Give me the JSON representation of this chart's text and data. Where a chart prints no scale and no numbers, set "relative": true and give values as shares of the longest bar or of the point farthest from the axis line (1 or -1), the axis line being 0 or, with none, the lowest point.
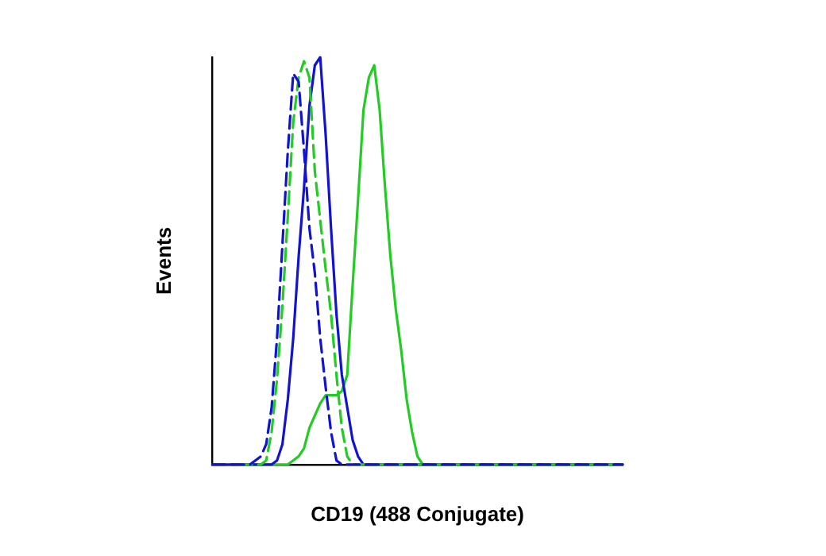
{
  "chart_data": {
    "type": "line",
    "relative": true,
    "xlabel": "CD19 (488 Conjugate)",
    "ylabel": "Events",
    "legend": false,
    "grid": false,
    "marker": "none",
    "tick_labels": false,
    "categories": [
      null,
      null,
      null,
      null,
      null,
      null,
      null,
      null,
      null,
      null,
      null,
      null,
      null,
      null,
      null,
      null,
      null,
      null,
      null,
      null,
      null,
      null,
      null,
      null,
      null,
      null,
      null,
      null,
      null,
      null,
      null,
      null,
      null,
      null,
      null,
      null,
      null,
      null,
      null,
      null,
      null,
      null,
      null,
      null,
      null,
      null,
      null,
      null,
      null,
      null,
      null,
      null,
      null,
      null,
      null,
      null,
      null,
      null,
      null,
      null,
      null,
      null,
      null,
      null,
      null,
      null,
      null,
      null,
      null,
      null,
      null,
      null,
      null,
      null,
      null,
      null,
      null
    ],
    "series": [
      {
        "color": "#1212d4",
        "line_style": "dashed",
        "values": [
          0,
          0,
          0,
          0,
          0,
          0,
          0,
          0,
          0.01,
          0.02,
          0.05,
          0.14,
          0.31,
          0.54,
          0.77,
          0.96,
          0.94,
          0.77,
          0.58,
          0.47,
          0.31,
          0.19,
          0.08,
          0.01,
          0,
          0,
          0,
          0,
          0,
          0,
          0,
          0,
          0,
          0,
          0,
          0,
          0,
          0,
          0,
          0,
          0,
          0,
          0,
          0,
          0,
          0,
          0,
          0,
          0,
          0,
          0,
          0,
          0,
          0,
          0,
          0,
          0,
          0,
          0,
          0,
          0,
          0,
          0,
          0,
          0,
          0,
          0,
          0,
          0,
          0,
          0,
          0,
          0,
          0,
          0,
          0,
          0
        ]
      },
      {
        "color": "#22cc22",
        "line_style": "dashed",
        "values": [
          null,
          null,
          null,
          null,
          null,
          0,
          0,
          0,
          0,
          0,
          0.01,
          0.08,
          0.21,
          0.39,
          0.61,
          0.84,
          0.95,
          0.99,
          0.95,
          0.72,
          0.6,
          0.48,
          0.37,
          0.22,
          0.09,
          0.02,
          0,
          0,
          0,
          0,
          0,
          0,
          0,
          0,
          0,
          0,
          0,
          0,
          0,
          0,
          0,
          0,
          0,
          0,
          0,
          0,
          0,
          0,
          0,
          0,
          0,
          0,
          0,
          0,
          0,
          0,
          0,
          0,
          0,
          0,
          0,
          0,
          0,
          0,
          0,
          0,
          0,
          0,
          0,
          0,
          0,
          0,
          0,
          0,
          0,
          0,
          0
        ]
      },
      {
        "color": "#1212d4",
        "line_style": "solid",
        "values": [
          0,
          0,
          0,
          0,
          0,
          0,
          0,
          0,
          0,
          0,
          0,
          0,
          0.01,
          0.05,
          0.16,
          0.31,
          0.51,
          0.68,
          0.88,
          0.98,
          1,
          0.81,
          0.58,
          0.37,
          0.22,
          0.14,
          0.06,
          0.02,
          0,
          0,
          0,
          0,
          0,
          0,
          0,
          0,
          0,
          0,
          0,
          0,
          0,
          0,
          0,
          0,
          0,
          0,
          0,
          0,
          0,
          0,
          0,
          0,
          0,
          0,
          0,
          0,
          0,
          0,
          0,
          0,
          0,
          0,
          0,
          0,
          0,
          0,
          0,
          0,
          0,
          0,
          0,
          0,
          0,
          0,
          0,
          0,
          0
        ]
      },
      {
        "color": "#22cc22",
        "line_style": "solid",
        "values": [
          null,
          null,
          null,
          null,
          null,
          null,
          0,
          0,
          0,
          0,
          0,
          0,
          0,
          0,
          0,
          0.01,
          0.02,
          0.04,
          0.09,
          0.12,
          0.15,
          0.17,
          0.17,
          0.17,
          0.18,
          0.22,
          0.44,
          0.65,
          0.87,
          0.95,
          0.98,
          0.87,
          0.68,
          0.51,
          0.38,
          0.28,
          0.16,
          0.08,
          0.02,
          0,
          0,
          0,
          0,
          0,
          0,
          0,
          0,
          0,
          0,
          0,
          0,
          0,
          0,
          0,
          0,
          0,
          0,
          0,
          0,
          0,
          0,
          0,
          0,
          0,
          0,
          0,
          0,
          0,
          0,
          0,
          0,
          0,
          0,
          0,
          0,
          0,
          0
        ]
      }
    ]
  }
}
